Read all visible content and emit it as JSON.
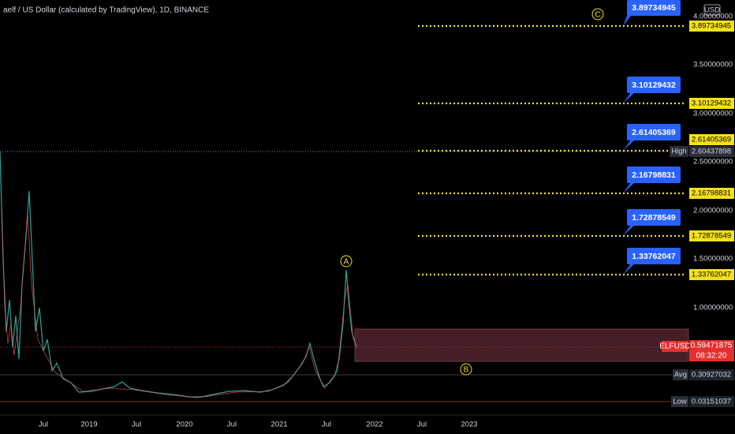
{
  "header": {
    "title": "aelf / US Dollar (calculated by TradingView), 1D, BINANCE",
    "currency": "USD"
  },
  "price_axis": [
    "4.00000000",
    "3.50000000",
    "3.00000000",
    "2.50000000",
    "2.00000000",
    "1.50000000",
    "1.00000000"
  ],
  "levels": [
    {
      "callout": "3.89734945",
      "axis_label": "3.89734945"
    },
    {
      "callout": "3.10129432",
      "axis_label": "3.10129432"
    },
    {
      "callout": "2.61405369",
      "axis_label": "2.61405369"
    },
    {
      "callout": "2.16798831",
      "axis_label": "2.16798831"
    },
    {
      "callout": "1.72878549",
      "axis_label": "1.72878549"
    },
    {
      "callout": "1.33762047",
      "axis_label": "1.33762047"
    }
  ],
  "markers": {
    "high": {
      "label": "High",
      "value": "2.60437898"
    },
    "symbol": {
      "label": "ELFUSD",
      "price": "0.59471875",
      "countdown": "08:32:20"
    },
    "avg": {
      "label": "Avg",
      "value": "0.30927032"
    },
    "low": {
      "label": "Low",
      "value": "0.03151037"
    }
  },
  "waves": [
    "A",
    "B",
    "C"
  ],
  "time_axis": [
    "Jul",
    "2019",
    "Jul",
    "2020",
    "Jul",
    "2021",
    "Jul",
    "2022",
    "Jul",
    "2023"
  ]
}
